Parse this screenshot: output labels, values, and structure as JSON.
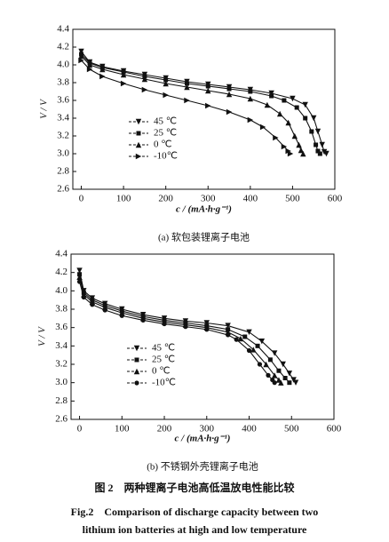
{
  "chart_data": [
    {
      "type": "line",
      "subtitle": "(a) 软包装锂离子电池",
      "xlabel": "c / (mA·h·g⁻¹)",
      "ylabel": "V / V",
      "xlim": [
        -20,
        600
      ],
      "ylim": [
        2.6,
        4.4
      ],
      "xticks": [
        0,
        100,
        200,
        300,
        400,
        500,
        600
      ],
      "yticks": [
        2.6,
        2.8,
        {
          "value": 3,
          "label": "3.0"
        },
        3.2,
        3.4,
        3.6,
        3.8,
        {
          "value": 4,
          "label": "4.0"
        },
        4.2,
        4.4
      ],
      "series": [
        {
          "name": "45 ℃",
          "color": "#111",
          "marker": "triangle-down",
          "x": [
            0,
            20,
            50,
            100,
            150,
            200,
            250,
            300,
            350,
            400,
            450,
            500,
            530,
            550,
            560,
            570,
            575,
            580
          ],
          "values": [
            4.15,
            4.03,
            3.98,
            3.93,
            3.89,
            3.85,
            3.81,
            3.78,
            3.75,
            3.72,
            3.68,
            3.62,
            3.55,
            3.4,
            3.25,
            3.1,
            3.02,
            3.0
          ]
        },
        {
          "name": "25 ℃",
          "color": "#111",
          "marker": "square",
          "x": [
            0,
            20,
            50,
            100,
            150,
            200,
            250,
            300,
            350,
            400,
            450,
            480,
            510,
            530,
            545,
            555,
            560,
            565
          ],
          "values": [
            4.12,
            4.02,
            3.97,
            3.92,
            3.87,
            3.83,
            3.79,
            3.76,
            3.73,
            3.7,
            3.65,
            3.6,
            3.52,
            3.4,
            3.25,
            3.1,
            3.03,
            3.0
          ]
        },
        {
          "name": "0 ℃",
          "color": "#111",
          "marker": "triangle-up",
          "x": [
            0,
            20,
            50,
            100,
            150,
            200,
            250,
            300,
            350,
            400,
            440,
            470,
            490,
            505,
            515,
            520,
            525
          ],
          "values": [
            4.1,
            4.0,
            3.95,
            3.89,
            3.84,
            3.79,
            3.75,
            3.71,
            3.67,
            3.62,
            3.55,
            3.45,
            3.35,
            3.2,
            3.1,
            3.04,
            3.0
          ]
        },
        {
          "name": "-10℃",
          "color": "#111",
          "marker": "triangle-right",
          "x": [
            0,
            20,
            50,
            100,
            150,
            200,
            250,
            300,
            350,
            400,
            430,
            460,
            480,
            490,
            495
          ],
          "values": [
            4.05,
            3.95,
            3.87,
            3.79,
            3.72,
            3.66,
            3.6,
            3.54,
            3.47,
            3.38,
            3.3,
            3.18,
            3.08,
            3.03,
            3.0
          ]
        }
      ]
    },
    {
      "type": "line",
      "subtitle": "(b) 不锈钢外壳锂离子电池",
      "xlabel": "c / (mA·h·g⁻¹)",
      "ylabel": "V / V",
      "xlim": [
        -20,
        600
      ],
      "ylim": [
        2.6,
        4.4
      ],
      "xticks": [
        0,
        100,
        200,
        300,
        400,
        500,
        600
      ],
      "yticks": [
        2.6,
        2.8,
        {
          "value": 3,
          "label": "3.0"
        },
        3.2,
        3.4,
        3.6,
        3.8,
        {
          "value": 4,
          "label": "4.0"
        },
        4.2,
        4.4
      ],
      "series": [
        {
          "name": "45 ℃",
          "color": "#111",
          "marker": "triangle-down",
          "x": [
            0,
            10,
            30,
            60,
            100,
            150,
            200,
            250,
            300,
            350,
            400,
            430,
            460,
            480,
            495,
            505,
            510
          ],
          "values": [
            4.22,
            4.0,
            3.92,
            3.86,
            3.8,
            3.74,
            3.7,
            3.67,
            3.65,
            3.62,
            3.55,
            3.45,
            3.32,
            3.2,
            3.1,
            3.03,
            3.0
          ]
        },
        {
          "name": "25 ℃",
          "color": "#111",
          "marker": "square",
          "x": [
            0,
            10,
            30,
            60,
            100,
            150,
            200,
            250,
            300,
            350,
            390,
            420,
            450,
            470,
            485,
            495
          ],
          "values": [
            4.18,
            3.98,
            3.9,
            3.84,
            3.78,
            3.72,
            3.68,
            3.65,
            3.62,
            3.58,
            3.5,
            3.4,
            3.25,
            3.13,
            3.05,
            3.0
          ]
        },
        {
          "name": "0 ℃",
          "color": "#111",
          "marker": "triangle-up",
          "x": [
            0,
            10,
            30,
            60,
            100,
            150,
            200,
            250,
            300,
            350,
            380,
            410,
            440,
            460,
            470,
            475
          ],
          "values": [
            4.15,
            3.96,
            3.88,
            3.82,
            3.76,
            3.7,
            3.66,
            3.63,
            3.6,
            3.55,
            3.48,
            3.36,
            3.2,
            3.08,
            3.03,
            3.0
          ]
        },
        {
          "name": "-10℃",
          "color": "#111",
          "marker": "circle",
          "x": [
            0,
            10,
            30,
            60,
            100,
            150,
            200,
            250,
            300,
            350,
            370,
            400,
            425,
            445,
            455,
            460
          ],
          "values": [
            4.1,
            3.93,
            3.85,
            3.79,
            3.73,
            3.68,
            3.64,
            3.61,
            3.58,
            3.52,
            3.47,
            3.35,
            3.2,
            3.08,
            3.03,
            3.0
          ]
        }
      ]
    }
  ],
  "caption": {
    "zh": "图 2　两种锂离子电池高低温放电性能比较",
    "en_line1": "Fig.2　Comparison of discharge capacity between two",
    "en_line2": "lithium ion batteries at high and low temperature"
  }
}
